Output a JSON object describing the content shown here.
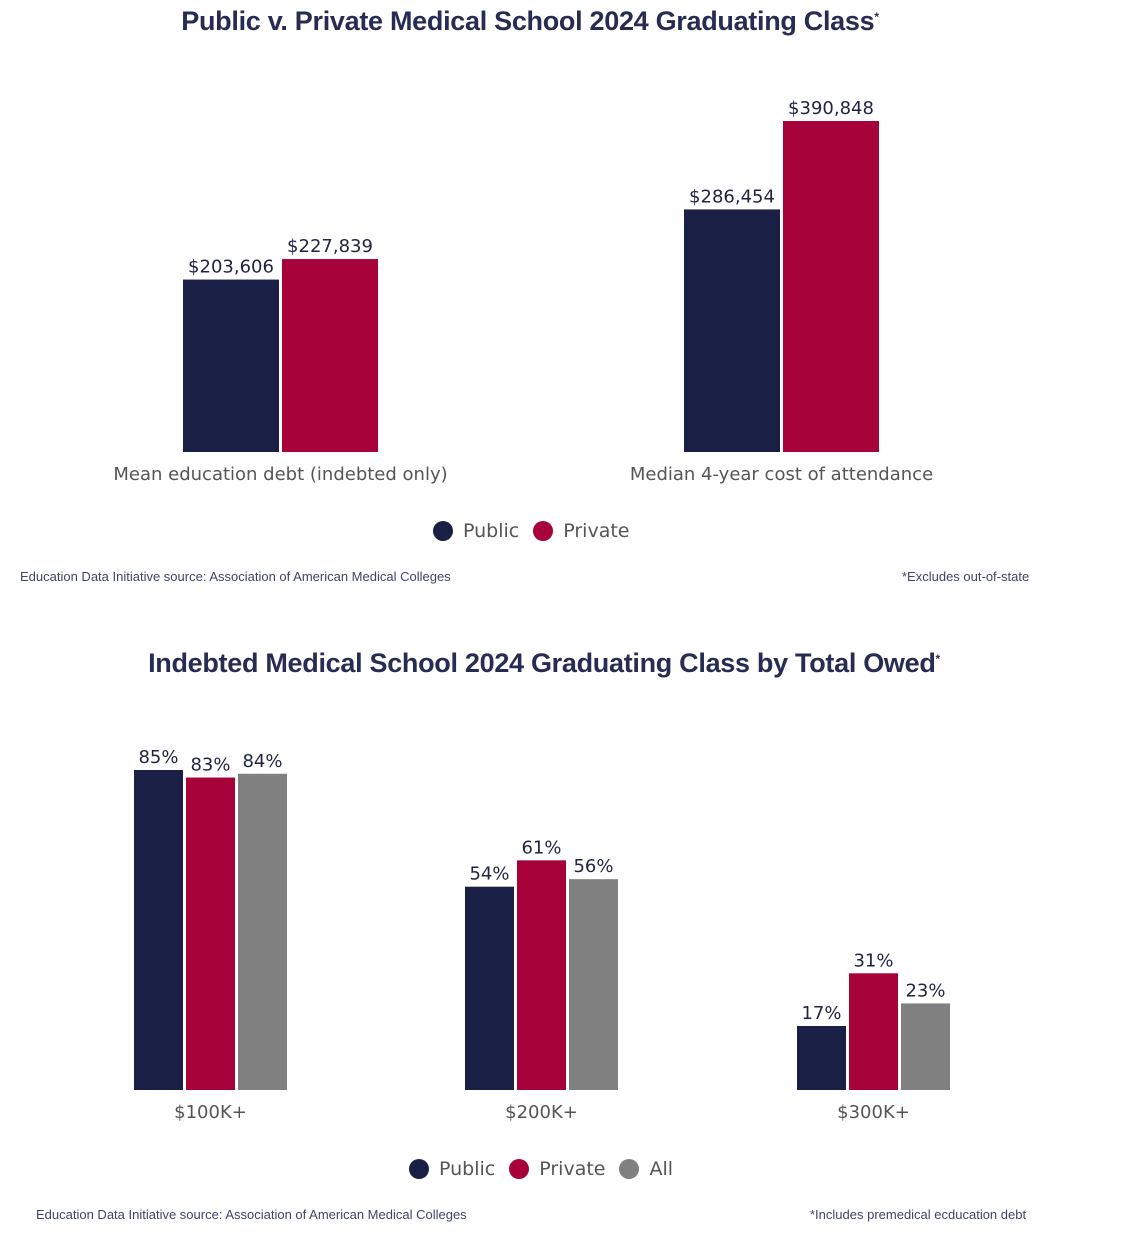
{
  "colors": {
    "public": "#1a1f45",
    "private": "#a8023a",
    "all": "#808080",
    "title": "#262c52",
    "label": "#555555",
    "value": "#1f2440"
  },
  "chart_data": [
    {
      "type": "bar",
      "title": "Public v. Private Medical School 2024 Graduating Class",
      "title_marker": "*",
      "categories": [
        "Mean education debt (indebted only)",
        "Median 4-year cost of attendance"
      ],
      "series": [
        {
          "name": "Public",
          "key": "public",
          "values": [
            203606,
            286454
          ],
          "labels": [
            "$203,606",
            "$286,454"
          ]
        },
        {
          "name": "Private",
          "key": "private",
          "values": [
            227839,
            390848
          ],
          "labels": [
            "$227,839",
            "$390,848"
          ]
        }
      ],
      "xlabel": "",
      "ylabel": "",
      "ylim": [
        0,
        390848
      ],
      "grid": false,
      "legend": "bottom-center",
      "source": "Education Data Initiative source: Association of American Medical Colleges",
      "footnote": "*Excludes out-of-state"
    },
    {
      "type": "bar",
      "title": "Indebted Medical School 2024 Graduating Class by Total Owed",
      "title_marker": "*",
      "categories": [
        "$100K+",
        "$200K+",
        "$300K+"
      ],
      "series": [
        {
          "name": "Public",
          "key": "public",
          "values": [
            85,
            54,
            17
          ],
          "labels": [
            "85%",
            "54%",
            "17%"
          ]
        },
        {
          "name": "Private",
          "key": "private",
          "values": [
            83,
            61,
            31
          ],
          "labels": [
            "83%",
            "61%",
            "31%"
          ]
        },
        {
          "name": "All",
          "key": "all",
          "values": [
            84,
            56,
            23
          ],
          "labels": [
            "84%",
            "56%",
            "23%"
          ]
        }
      ],
      "xlabel": "",
      "ylabel": "",
      "ylim": [
        0,
        85
      ],
      "grid": false,
      "legend": "bottom-center",
      "source": "Education Data Initiative source: Association of American Medical Colleges",
      "footnote": "*Includes premedical ecducation debt"
    }
  ]
}
